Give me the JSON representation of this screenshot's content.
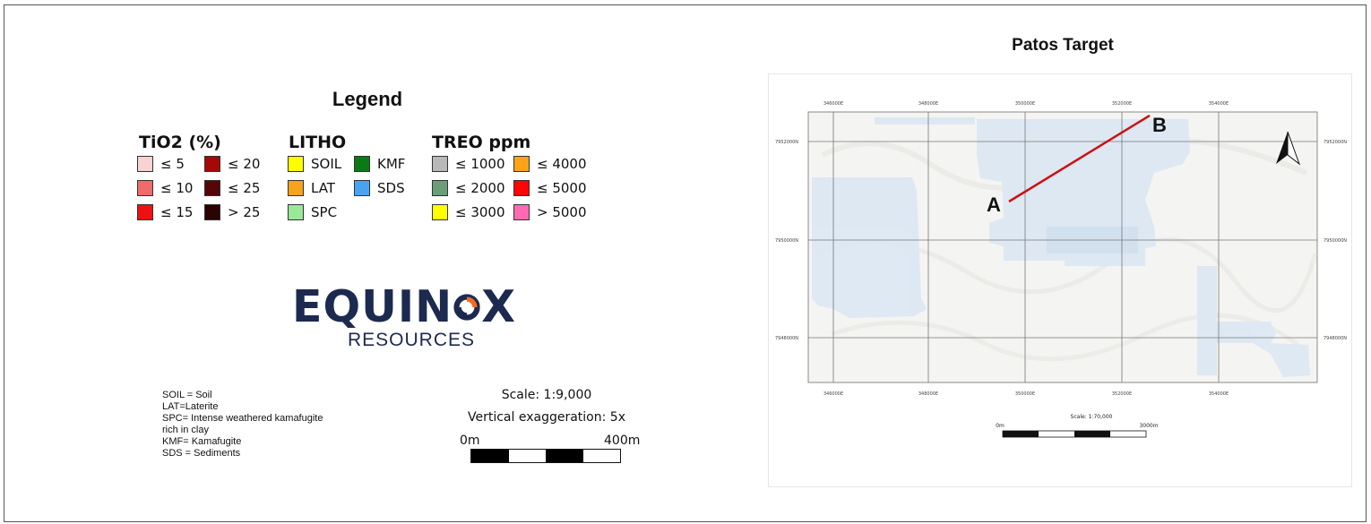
{
  "legend": {
    "title": "Legend",
    "groups": [
      {
        "heading": "TiO2 (%)",
        "items": [
          {
            "label": "≤ 5",
            "color": "#f9d2d2"
          },
          {
            "label": "≤ 10",
            "color": "#ef6b6b"
          },
          {
            "label": "≤ 15",
            "color": "#ee1111"
          },
          {
            "label": "≤ 20",
            "color": "#a80707"
          },
          {
            "label": "≤ 25",
            "color": "#560606"
          },
          {
            "label": "> 25",
            "color": "#2b0303"
          }
        ]
      },
      {
        "heading": "LITHO",
        "items": [
          {
            "label": "SOIL",
            "color": "#ffff00"
          },
          {
            "label": "LAT",
            "color": "#f7a31c"
          },
          {
            "label": "SPC",
            "color": "#98e898"
          },
          {
            "label": "KMF",
            "color": "#0b7a14"
          },
          {
            "label": "SDS",
            "color": "#48a4f2"
          }
        ]
      },
      {
        "heading": "TREO ppm",
        "items": [
          {
            "label": "≤ 1000",
            "color": "#b8b8b8"
          },
          {
            "label": "≤ 2000",
            "color": "#6a9e76"
          },
          {
            "label": "≤ 3000",
            "color": "#ffff00"
          },
          {
            "label": "≤ 4000",
            "color": "#ffa21a"
          },
          {
            "label": "≤ 5000",
            "color": "#ff0505"
          },
          {
            "label": "> 5000",
            "color": "#ff6ab2"
          }
        ]
      }
    ]
  },
  "logo": {
    "word_left": "EQUIN",
    "word_right": "X",
    "subtitle": "RESOURCES",
    "text_color": "#1d2a4f",
    "accent_color": "#f26b22"
  },
  "abbreviations": [
    "SOIL  = Soil",
    "LAT=Laterite",
    "SPC= Intense weathered kamafugite",
    "rich in clay",
    "KMF= Kamafugite",
    "SDS = Sediments"
  ],
  "section_scale": {
    "scale": "Scale: 1:9,000",
    "exaggeration": "Vertical exaggeration: 5x",
    "start_label": "0m",
    "end_label": "400m"
  },
  "map": {
    "title": "Patos Target",
    "top_coords": [
      "346000E",
      "348000E",
      "350000E",
      "352000E",
      "354000E"
    ],
    "bottom_coords": [
      "346000E",
      "348000E",
      "350000E",
      "352000E",
      "354000E"
    ],
    "left_coords": [
      "7952000N",
      "7950000N",
      "7948000N"
    ],
    "right_coords": [
      "7952000N",
      "7950000N",
      "7948000N"
    ],
    "point_a": "A",
    "point_b": "B",
    "line_color": "#cc1111",
    "scale_label": "Scale: 1:70,000",
    "scale_start": "0m",
    "scale_end": "3000m"
  }
}
